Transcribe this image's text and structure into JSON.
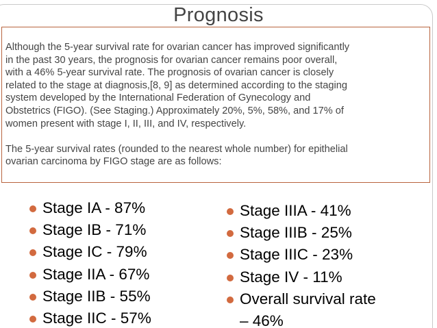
{
  "title": "Prognosis",
  "paragraphs": [
    {
      "lines": [
        "Although the 5-year survival rate for ovarian cancer has improved significantly",
        "in the past 30 years, the prognosis for ovarian cancer remains poor overall,",
        "with a 46% 5-year survival rate. The prognosis of ovarian cancer is closely",
        "related to the stage at diagnosis,[8, 9] as determined according to the staging",
        "system developed by the International Federation of Gynecology and",
        "Obstetrics (FIGO). (See Staging.) Approximately 20%, 5%, 58%, and 17% of",
        "women present with stage I, II, III, and IV, respectively."
      ]
    },
    {
      "lines": [
        "The 5-year survival rates (rounded to the nearest whole number) for epithelial",
        "ovarian carcinoma by FIGO stage are as follows:"
      ]
    }
  ],
  "stages_left": [
    "Stage IA - 87%",
    "Stage IB - 71%",
    "Stage IC - 79%",
    "Stage IIA - 67%",
    "Stage IIB - 55%",
    "Stage IIC - 57%"
  ],
  "stages_right": [
    "Stage IIIA - 41%",
    "Stage IIIB - 25%",
    "Stage IIIC - 23%",
    "Stage IV - 11%"
  ],
  "overall": {
    "line1": "Overall survival rate",
    "line2": "– 46%"
  },
  "colors": {
    "bullet": "#d26a3f",
    "box_border": "#b8633d",
    "title": "#444444"
  }
}
